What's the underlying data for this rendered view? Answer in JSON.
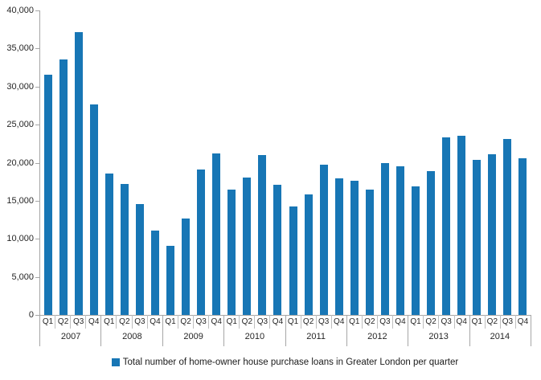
{
  "chart_data": {
    "type": "bar",
    "legend_label": "Total number of home-owner house purchase loans in Greater London per quarter",
    "legend_position": "bottom",
    "grid": false,
    "ylim": [
      0,
      40000
    ],
    "ytick_interval": 5000,
    "ytick_labels": [
      "40,000",
      "35,000",
      "30,000",
      "25,000",
      "20,000",
      "15,000",
      "10,000",
      "5,000",
      "0"
    ],
    "quarters": [
      "Q1",
      "Q2",
      "Q3",
      "Q4"
    ],
    "groups": [
      {
        "year": "2007",
        "values": [
          31600,
          33600,
          37200,
          27700
        ]
      },
      {
        "year": "2008",
        "values": [
          18600,
          17200,
          14600,
          11100
        ]
      },
      {
        "year": "2009",
        "values": [
          9100,
          12700,
          19100,
          21200
        ]
      },
      {
        "year": "2010",
        "values": [
          16500,
          18000,
          21000,
          17100
        ]
      },
      {
        "year": "2011",
        "values": [
          14200,
          15800,
          19700,
          17900
        ]
      },
      {
        "year": "2012",
        "values": [
          17600,
          16500,
          19900,
          19500
        ]
      },
      {
        "year": "2013",
        "values": [
          16900,
          18900,
          23300,
          23500
        ]
      },
      {
        "year": "2014",
        "values": [
          20400,
          21100,
          23100,
          20600
        ]
      }
    ],
    "colors": {
      "bar": "#1776B5",
      "axis": "#A6A6A6",
      "quarter_separator": "#BFBFBF",
      "text": "#262626"
    }
  }
}
